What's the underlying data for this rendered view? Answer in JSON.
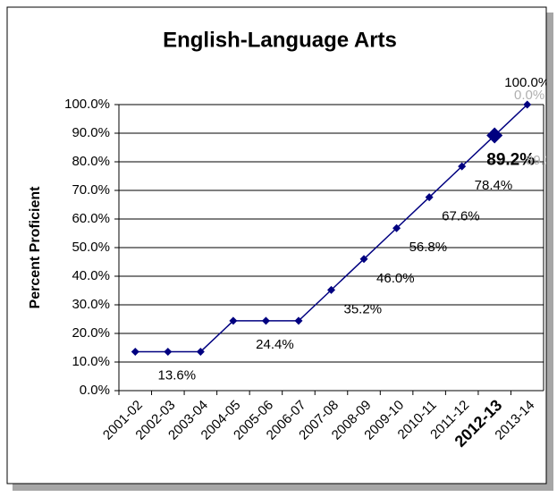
{
  "chart_data": {
    "type": "line",
    "title": "English-Language Arts",
    "y_label": "Percent Proficient",
    "categories": [
      "2001-02",
      "2002-03",
      "2003-04",
      "2004-05",
      "2005-06",
      "2006-07",
      "2007-08",
      "2008-09",
      "2009-10",
      "2010-11",
      "2011-12",
      "2012-13",
      "2013-14"
    ],
    "series": [
      {
        "color": "#000080",
        "values": [
          13.6,
          13.6,
          13.6,
          24.4,
          24.4,
          24.4,
          35.2,
          46.0,
          56.8,
          67.6,
          78.4,
          89.2,
          100.0
        ],
        "value_labels": [
          null,
          "13.6%",
          null,
          null,
          "24.4%",
          null,
          "35.2%",
          "46.0%",
          "56.8%",
          "67.6%",
          "78.4%",
          "89.2%",
          "100.0%"
        ]
      }
    ],
    "highlight": "2012-13",
    "annotations": [
      "0.0%",
      "89.2%"
    ],
    "ylim": [
      0,
      100
    ],
    "yticks": [
      {
        "value": 0,
        "label": "0.0%"
      },
      {
        "value": 10,
        "label": "10.0%"
      },
      {
        "value": 20,
        "label": "20.0%"
      },
      {
        "value": 30,
        "label": "30.0%"
      },
      {
        "value": 40,
        "label": "40.0%"
      },
      {
        "value": 50,
        "label": "50.0%"
      },
      {
        "value": 60,
        "label": "60.0%"
      },
      {
        "value": 70,
        "label": "70.0%"
      },
      {
        "value": 80,
        "label": "80.0%"
      },
      {
        "value": 90,
        "label": "90.0%"
      },
      {
        "value": 100,
        "label": "100.0%"
      }
    ],
    "grid": true
  }
}
